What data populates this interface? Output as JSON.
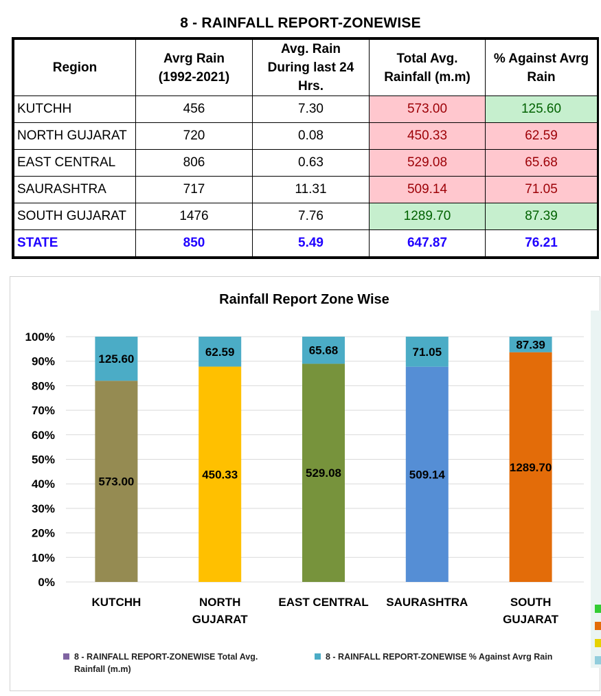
{
  "report": {
    "title": "8 - RAINFALL REPORT-ZONEWISE",
    "headers": {
      "region": "Region",
      "avg_rain_1": "Avrg Rain",
      "avg_rain_2": "(1992-2021)",
      "last24_1": "Avg. Rain",
      "last24_2": "During last 24",
      "last24_3": "Hrs.",
      "total_1": "Total Avg.",
      "total_2": "Rainfall (m.m)",
      "pct_1": "% Against Avrg",
      "pct_2": "Rain"
    },
    "rows": [
      {
        "region": "KUTCHH",
        "avg": "456",
        "last24": "7.30",
        "total": "573.00",
        "pct": "125.60"
      },
      {
        "region": "NORTH GUJARAT",
        "avg": "720",
        "last24": "0.08",
        "total": "450.33",
        "pct": "62.59"
      },
      {
        "region": "EAST CENTRAL",
        "avg": "806",
        "last24": "0.63",
        "total": "529.08",
        "pct": "65.68"
      },
      {
        "region": "SAURASHTRA",
        "avg": "717",
        "last24": "11.31",
        "total": "509.14",
        "pct": "71.05"
      },
      {
        "region": "SOUTH GUJARAT",
        "avg": "1476",
        "last24": "7.76",
        "total": "1289.70",
        "pct": "87.39"
      }
    ],
    "state": {
      "region": "STATE",
      "avg": "850",
      "last24": "5.49",
      "total": "647.87",
      "pct": "76.21"
    }
  },
  "colors": {
    "bad_fill": "#ffc7ce",
    "bad_text": "#9c0006",
    "good_fill": "#c6efce",
    "good_text": "#006100",
    "state_text": "#1f00ff",
    "pct_series": "#4bacc6",
    "legend_total_swatch": "#8064a2",
    "side_markers": [
      "#33cc33",
      "#e36c09",
      "#e6d200",
      "#92cddc"
    ]
  },
  "chart_data": {
    "type": "bar",
    "stacked": "percent",
    "title": "Rainfall Report Zone Wise",
    "categories": [
      [
        "KUTCHH"
      ],
      [
        "NORTH",
        "GUJARAT"
      ],
      [
        "EAST CENTRAL"
      ],
      [
        "SAURASHTRA"
      ],
      [
        "SOUTH",
        "GUJARAT"
      ]
    ],
    "series": [
      {
        "name": "8 - RAINFALL REPORT-ZONEWISE Total Avg. Rainfall (m.m)",
        "values": [
          573.0,
          450.33,
          529.08,
          509.14,
          1289.7
        ],
        "labels": [
          "573.00",
          "450.33",
          "529.08",
          "509.14",
          "1289.70"
        ]
      },
      {
        "name": "8 - RAINFALL REPORT-ZONEWISE % Against Avrg Rain",
        "values": [
          125.6,
          62.59,
          65.68,
          71.05,
          87.39
        ],
        "labels": [
          "125.60",
          "62.59",
          "65.68",
          "71.05",
          "87.39"
        ]
      }
    ],
    "bar_colors": [
      "#958b52",
      "#ffc000",
      "#77933c",
      "#558ed5",
      "#e36c09"
    ],
    "ylim": [
      0,
      100
    ],
    "yticks": [
      "0%",
      "10%",
      "20%",
      "30%",
      "40%",
      "50%",
      "60%",
      "70%",
      "80%",
      "90%",
      "100%"
    ],
    "grid": true,
    "legend": {
      "position": "bottom",
      "items": [
        {
          "lines": [
            "8 - RAINFALL REPORT-ZONEWISE Total Avg.",
            "Rainfall (m.m)"
          ],
          "color": "#8064a2"
        },
        {
          "lines": [
            "8 - RAINFALL REPORT-ZONEWISE % Against Avrg Rain"
          ],
          "color": "#4bacc6"
        }
      ]
    }
  }
}
